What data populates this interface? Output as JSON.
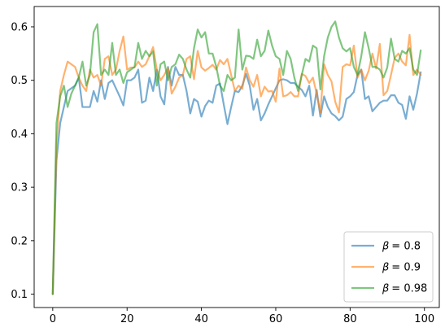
{
  "chart_data": {
    "type": "line",
    "title": "",
    "xlabel": "",
    "ylabel": "",
    "xlim": [
      -5,
      104
    ],
    "ylim": [
      0.075,
      0.638
    ],
    "grid": false,
    "legend_position": "lower-right",
    "x_ticks": [
      0,
      20,
      40,
      60,
      80,
      100
    ],
    "x_tick_labels": [
      "0",
      "20",
      "40",
      "60",
      "80",
      "100"
    ],
    "y_ticks": [
      0.1,
      0.2,
      0.3,
      0.4,
      0.5,
      0.6
    ],
    "y_tick_labels": [
      "0.1",
      "0.2",
      "0.3",
      "0.4",
      "0.5",
      "0.6"
    ],
    "x": [
      0,
      1,
      2,
      3,
      4,
      5,
      6,
      7,
      8,
      9,
      10,
      11,
      12,
      13,
      14,
      15,
      16,
      17,
      18,
      19,
      20,
      21,
      22,
      23,
      24,
      25,
      26,
      27,
      28,
      29,
      30,
      31,
      32,
      33,
      34,
      35,
      36,
      37,
      38,
      39,
      40,
      41,
      42,
      43,
      44,
      45,
      46,
      47,
      48,
      49,
      50,
      51,
      52,
      53,
      54,
      55,
      56,
      57,
      58,
      59,
      60,
      61,
      62,
      63,
      64,
      65,
      66,
      67,
      68,
      69,
      70,
      71,
      72,
      73,
      74,
      75,
      76,
      77,
      78,
      79,
      80,
      81,
      82,
      83,
      84,
      85,
      86,
      87,
      88,
      89,
      90,
      91,
      92,
      93,
      94,
      95,
      96,
      97,
      98,
      99
    ],
    "series": [
      {
        "name": "β = 0.8",
        "label_prefix": "β",
        "label_value": "= 0.8",
        "color": "#1f77b4",
        "values": [
          0.1,
          0.35,
          0.42,
          0.45,
          0.48,
          0.485,
          0.49,
          0.505,
          0.45,
          0.45,
          0.45,
          0.48,
          0.46,
          0.5,
          0.465,
          0.495,
          0.5,
          0.485,
          0.47,
          0.453,
          0.5,
          0.5,
          0.505,
          0.52,
          0.458,
          0.462,
          0.505,
          0.48,
          0.52,
          0.47,
          0.455,
          0.525,
          0.49,
          0.525,
          0.51,
          0.51,
          0.48,
          0.438,
          0.465,
          0.46,
          0.432,
          0.452,
          0.462,
          0.458,
          0.49,
          0.494,
          0.455,
          0.418,
          0.45,
          0.48,
          0.478,
          0.49,
          0.512,
          0.49,
          0.445,
          0.465,
          0.425,
          0.438,
          0.455,
          0.47,
          0.485,
          0.5,
          0.502,
          0.5,
          0.495,
          0.495,
          0.488,
          0.482,
          0.47,
          0.49,
          0.434,
          0.482,
          0.432,
          0.47,
          0.45,
          0.438,
          0.433,
          0.425,
          0.432,
          0.465,
          0.47,
          0.478,
          0.51,
          0.52,
          0.465,
          0.47,
          0.442,
          0.45,
          0.458,
          0.462,
          0.462,
          0.472,
          0.472,
          0.458,
          0.454,
          0.428,
          0.47,
          0.445,
          0.475,
          0.515
        ]
      },
      {
        "name": "β = 0.9",
        "label_prefix": "β",
        "label_value": "= 0.9",
        "color": "#ff7f0e",
        "values": [
          0.1,
          0.38,
          0.48,
          0.51,
          0.535,
          0.53,
          0.525,
          0.505,
          0.49,
          0.48,
          0.52,
          0.505,
          0.51,
          0.49,
          0.54,
          0.545,
          0.51,
          0.52,
          0.555,
          0.582,
          0.52,
          0.524,
          0.524,
          0.535,
          0.525,
          0.53,
          0.545,
          0.562,
          0.52,
          0.5,
          0.51,
          0.523,
          0.475,
          0.488,
          0.505,
          0.51,
          0.54,
          0.545,
          0.502,
          0.555,
          0.524,
          0.518,
          0.523,
          0.529,
          0.52,
          0.538,
          0.53,
          0.54,
          0.51,
          0.48,
          0.49,
          0.484,
          0.524,
          0.5,
          0.488,
          0.51,
          0.47,
          0.488,
          0.479,
          0.48,
          0.46,
          0.522,
          0.47,
          0.472,
          0.478,
          0.47,
          0.47,
          0.512,
          0.508,
          0.495,
          0.505,
          0.475,
          0.44,
          0.53,
          0.51,
          0.498,
          0.46,
          0.44,
          0.525,
          0.53,
          0.528,
          0.565,
          0.505,
          0.52,
          0.5,
          0.518,
          0.55,
          0.522,
          0.568,
          0.472,
          0.48,
          0.51,
          0.542,
          0.55,
          0.535,
          0.528,
          0.585,
          0.51,
          0.52,
          0.51
        ]
      },
      {
        "name": "β = 0.98",
        "label_prefix": "β",
        "label_value": "= 0.98",
        "color": "#2ca02c",
        "values": [
          0.1,
          0.42,
          0.47,
          0.49,
          0.45,
          0.475,
          0.49,
          0.505,
          0.535,
          0.49,
          0.51,
          0.59,
          0.605,
          0.51,
          0.52,
          0.51,
          0.57,
          0.51,
          0.52,
          0.495,
          0.515,
          0.52,
          0.525,
          0.57,
          0.54,
          0.555,
          0.545,
          0.554,
          0.49,
          0.53,
          0.535,
          0.5,
          0.525,
          0.53,
          0.548,
          0.54,
          0.52,
          0.505,
          0.56,
          0.595,
          0.58,
          0.59,
          0.55,
          0.55,
          0.525,
          0.49,
          0.48,
          0.51,
          0.5,
          0.505,
          0.595,
          0.52,
          0.546,
          0.545,
          0.54,
          0.576,
          0.545,
          0.555,
          0.593,
          0.565,
          0.545,
          0.54,
          0.51,
          0.555,
          0.54,
          0.505,
          0.48,
          0.51,
          0.54,
          0.535,
          0.565,
          0.56,
          0.483,
          0.545,
          0.58,
          0.6,
          0.61,
          0.58,
          0.56,
          0.554,
          0.56,
          0.525,
          0.51,
          0.545,
          0.59,
          0.56,
          0.525,
          0.525,
          0.52,
          0.505,
          0.524,
          0.578,
          0.54,
          0.535,
          0.555,
          0.55,
          0.56,
          0.52,
          0.51,
          0.556
        ]
      }
    ]
  }
}
